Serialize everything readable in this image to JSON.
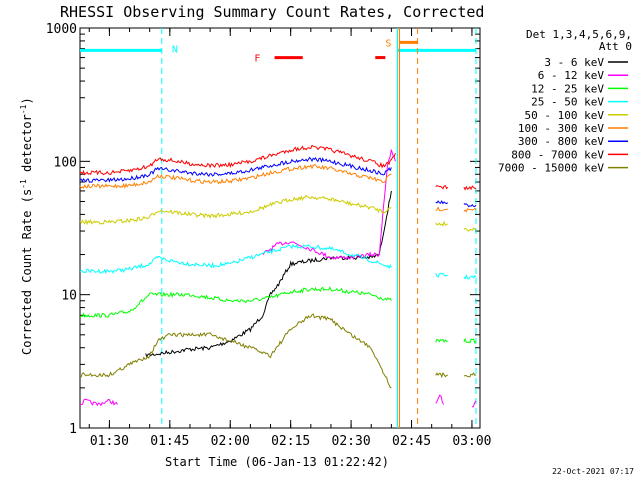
{
  "chart_data": {
    "type": "line",
    "title": "RHESSI Observing Summary Count Rates, Corrected",
    "xlabel": "Start Time (06-Jan-13 01:22:42)",
    "ylabel_main": "Corrected Count Rate (s",
    "ylabel_sup1": "-1",
    "ylabel_mid": " detector",
    "ylabel_sup2": "-1",
    "ylabel_end": ")",
    "y_scale": "log",
    "ylim": [
      1,
      1000
    ],
    "xlim": [
      "01:22:42",
      "03:02:00"
    ],
    "x_ticks": [
      "01:30",
      "01:45",
      "02:00",
      "02:15",
      "02:30",
      "02:45",
      "03:00"
    ],
    "y_ticks": [
      {
        "value": 1,
        "label": "1"
      },
      {
        "value": 10,
        "label": "10"
      },
      {
        "value": 100,
        "label": "100"
      },
      {
        "value": 1000,
        "label": "1000"
      }
    ],
    "legend": {
      "placement": "right",
      "header_line1": "Det 1,3,4,5,6,9,",
      "header_line2": "Att 0"
    },
    "series": [
      {
        "name": "3 - 6 keV",
        "color": "#000000",
        "segments": [
          {
            "t": [
              "01:39",
              "01:42",
              "01:45",
              "01:50",
              "01:55",
              "02:00",
              "02:05",
              "02:08",
              "02:10",
              "02:12",
              "02:15",
              "02:20",
              "02:25",
              "02:30",
              "02:35",
              "02:37",
              "02:40"
            ],
            "v": [
              3.5,
              3.6,
              3.7,
              3.9,
              4.0,
              4.5,
              5.5,
              7,
              10,
              12,
              17,
              18,
              19,
              19,
              19,
              20,
              60
            ]
          }
        ]
      },
      {
        "name": "6 - 12 keV",
        "color": "#ff00ff",
        "segments": [
          {
            "t": [
              "01:22:42",
              "01:24",
              "01:27",
              "01:30",
              "01:32"
            ],
            "v": [
              1.5,
              1.6,
              1.5,
              1.6,
              1.5
            ]
          },
          {
            "t": [
              "02:08",
              "02:10",
              "02:12",
              "02:15",
              "02:20",
              "02:25",
              "02:30",
              "02:35",
              "02:37",
              "02:38",
              "02:39",
              "02:40",
              "02:41"
            ],
            "v": [
              20,
              22,
              24,
              25,
              22,
              19,
              19,
              20,
              20,
              45,
              90,
              120,
              100
            ]
          },
          {
            "t": [
              "02:51",
              "02:52",
              "02:53"
            ],
            "v": [
              1.5,
              1.8,
              1.5
            ]
          },
          {
            "t": [
              "03:00",
              "03:01"
            ],
            "v": [
              1.4,
              1.6
            ]
          }
        ]
      },
      {
        "name": "12 - 25 keV",
        "color": "#00ff00",
        "segments": [
          {
            "t": [
              "01:22:42",
              "01:30",
              "01:35",
              "01:40",
              "01:45",
              "01:50",
              "01:55",
              "02:00",
              "02:05",
              "02:10",
              "02:15",
              "02:20",
              "02:25",
              "02:30",
              "02:35",
              "02:40"
            ],
            "v": [
              7,
              7,
              7.5,
              10,
              10,
              10,
              9.5,
              9,
              9,
              9.5,
              10.5,
              11,
              11,
              10.5,
              10,
              9
            ]
          },
          {
            "t": [
              "02:51",
              "02:54"
            ],
            "v": [
              4.5,
              4.5
            ]
          },
          {
            "t": [
              "02:58",
              "03:01"
            ],
            "v": [
              4.5,
              4.5
            ]
          }
        ]
      },
      {
        "name": "25 - 50 keV",
        "color": "#00ffff",
        "segments": [
          {
            "t": [
              "01:22:42",
              "01:30",
              "01:35",
              "01:40",
              "01:42",
              "01:45",
              "01:50",
              "01:55",
              "02:00",
              "02:05",
              "02:10",
              "02:15",
              "02:20",
              "02:25",
              "02:30",
              "02:35",
              "02:40"
            ],
            "v": [
              15,
              15,
              15.5,
              17,
              19,
              18,
              17,
              16.5,
              17,
              19,
              21,
              23,
              23,
              22,
              20,
              18,
              16
            ]
          },
          {
            "t": [
              "02:51",
              "02:54"
            ],
            "v": [
              14,
              14
            ]
          },
          {
            "t": [
              "02:58",
              "03:01"
            ],
            "v": [
              13.5,
              13.5
            ]
          }
        ]
      },
      {
        "name": "50 - 100 keV",
        "color": "#cccc00",
        "segments": [
          {
            "t": [
              "01:22:42",
              "01:30",
              "01:35",
              "01:40",
              "01:42",
              "01:45",
              "01:50",
              "01:55",
              "02:00",
              "02:05",
              "02:10",
              "02:15",
              "02:20",
              "02:25",
              "02:30",
              "02:35",
              "02:38",
              "02:40"
            ],
            "v": [
              35,
              35,
              36,
              38,
              43,
              42,
              40,
              39,
              40,
              42,
              47,
              52,
              54,
              52,
              48,
              45,
              42,
              45
            ]
          },
          {
            "t": [
              "02:51",
              "02:54"
            ],
            "v": [
              34,
              34
            ]
          },
          {
            "t": [
              "02:58",
              "03:01"
            ],
            "v": [
              31,
              31
            ]
          }
        ]
      },
      {
        "name": "100 - 300 keV",
        "color": "#ff8000",
        "segments": [
          {
            "t": [
              "01:22:42",
              "01:30",
              "01:35",
              "01:40",
              "01:42",
              "01:45",
              "01:50",
              "01:55",
              "02:00",
              "02:05",
              "02:10",
              "02:15",
              "02:20",
              "02:25",
              "02:30",
              "02:35",
              "02:38",
              "02:40"
            ],
            "v": [
              65,
              65,
              66,
              70,
              78,
              76,
              72,
              70,
              71,
              75,
              82,
              88,
              92,
              88,
              80,
              75,
              70,
              80
            ]
          },
          {
            "t": [
              "02:51",
              "02:54"
            ],
            "v": [
              44,
              44
            ]
          },
          {
            "t": [
              "02:58",
              "03:01"
            ],
            "v": [
              43,
              43
            ]
          }
        ]
      },
      {
        "name": "300 - 800 keV",
        "color": "#0000ff",
        "segments": [
          {
            "t": [
              "01:22:42",
              "01:30",
              "01:35",
              "01:40",
              "01:42",
              "01:45",
              "01:50",
              "01:55",
              "02:00",
              "02:05",
              "02:10",
              "02:15",
              "02:20",
              "02:25",
              "02:30",
              "02:35",
              "02:38",
              "02:40"
            ],
            "v": [
              72,
              72,
              74,
              80,
              88,
              86,
              82,
              80,
              81,
              86,
              93,
              100,
              104,
              100,
              92,
              85,
              80,
              90
            ]
          },
          {
            "t": [
              "02:51",
              "02:54"
            ],
            "v": [
              49,
              49
            ]
          },
          {
            "t": [
              "02:58",
              "03:01"
            ],
            "v": [
              47,
              47
            ]
          }
        ]
      },
      {
        "name": "800 - 7000 keV",
        "color": "#ff0000",
        "segments": [
          {
            "t": [
              "01:22:42",
              "01:30",
              "01:35",
              "01:40",
              "01:42",
              "01:45",
              "01:50",
              "01:55",
              "02:00",
              "02:05",
              "02:10",
              "02:15",
              "02:20",
              "02:25",
              "02:30",
              "02:35",
              "02:38",
              "02:40",
              "02:41"
            ],
            "v": [
              82,
              82,
              85,
              92,
              105,
              102,
              96,
              93,
              94,
              100,
              110,
              122,
              128,
              122,
              110,
              100,
              92,
              100,
              115
            ]
          },
          {
            "t": [
              "02:51",
              "02:54"
            ],
            "v": [
              64,
              64
            ]
          },
          {
            "t": [
              "02:58",
              "03:01"
            ],
            "v": [
              63,
              63
            ]
          }
        ]
      },
      {
        "name": "7000 - 15000 keV",
        "color": "#808000",
        "segments": [
          {
            "t": [
              "01:22:42",
              "01:30",
              "01:35",
              "01:40",
              "01:42",
              "01:45",
              "01:50",
              "01:55",
              "02:00",
              "02:05",
              "02:10",
              "02:15",
              "02:20",
              "02:25",
              "02:30",
              "02:35",
              "02:40"
            ],
            "v": [
              2.5,
              2.5,
              3,
              3.5,
              4.5,
              5,
              5,
              5,
              4.5,
              4,
              3.5,
              5.5,
              7,
              6.5,
              5,
              4,
              2
            ]
          },
          {
            "t": [
              "02:51",
              "02:54"
            ],
            "v": [
              2.5,
              2.5
            ]
          },
          {
            "t": [
              "02:58",
              "03:01"
            ],
            "v": [
              2.5,
              2.5
            ]
          }
        ]
      }
    ],
    "annotations": {
      "night_label": "N",
      "saa_label": "S",
      "flare_label": "F",
      "night_level": 680,
      "flare_level": 600,
      "saa_level": 780,
      "night_color": "#00ffff",
      "saa_color": "#ff8000",
      "flare_color": "#ff0000",
      "night_bars": [
        [
          "01:22:42",
          "01:43:00"
        ],
        [
          "02:41:30",
          "03:01:00"
        ]
      ],
      "night_dashed": [
        "01:43:00",
        "03:01:00"
      ],
      "night_solid": [
        "02:41:30"
      ],
      "saa_bars": [
        [
          "02:42:00",
          "02:46:30"
        ]
      ],
      "saa_solid": [
        "02:42:00"
      ],
      "saa_dashed": [
        "02:46:30"
      ],
      "flare_bars": [
        [
          "02:11:00",
          "02:18:00"
        ],
        [
          "02:36:00",
          "02:38:30"
        ]
      ],
      "flare_label_time": "02:07:30",
      "saa_label_time": "02:40:00",
      "night_label_time": "01:45:30"
    },
    "footer_date": "22-Oct-2021 07:17"
  }
}
